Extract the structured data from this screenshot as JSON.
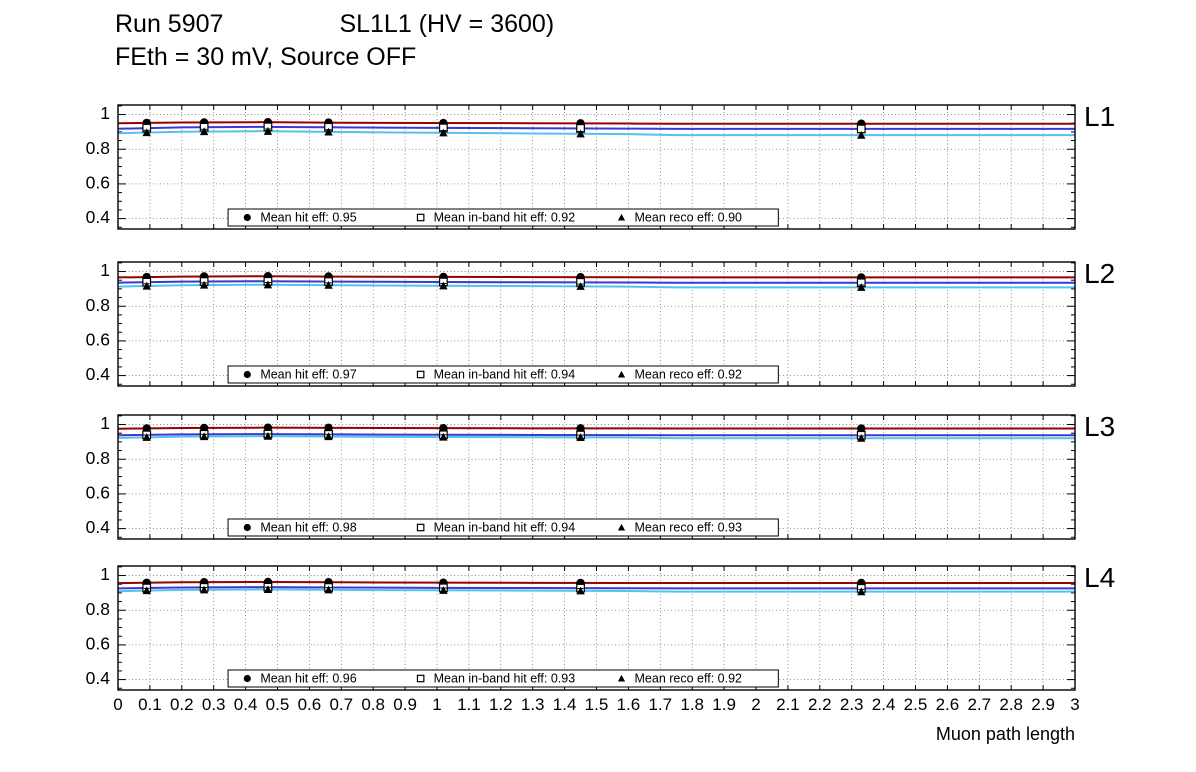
{
  "header": {
    "run_label": "Run 5907",
    "chamber_label": "SL1L1 (HV = 3600)",
    "subtitle": "FEth = 30 mV, Source OFF"
  },
  "axes": {
    "xlabel": "Muon path length",
    "xlim": [
      0,
      3
    ],
    "x_tick_step": 0.1,
    "x_tick_labels": [
      "0",
      "0.1",
      "0.2",
      "0.3",
      "0.4",
      "0.5",
      "0.6",
      "0.7",
      "0.8",
      "0.9",
      "1",
      "1.1",
      "1.2",
      "1.3",
      "1.4",
      "1.5",
      "1.6",
      "1.7",
      "1.8",
      "1.9",
      "2",
      "2.1",
      "2.2",
      "2.3",
      "2.4",
      "2.5",
      "2.6",
      "2.7",
      "2.8",
      "2.9",
      "3"
    ],
    "ylim": [
      0.34,
      1.055
    ],
    "y_ticks": [
      0.4,
      0.6,
      0.8,
      1
    ],
    "y_tick_labels": [
      "0.4",
      "0.6",
      "0.8",
      "1"
    ],
    "grid": true
  },
  "colors": {
    "hit": "#990000",
    "inband": "#3a3ad1",
    "reco": "#56c1ec",
    "marker": "#000000"
  },
  "chart_data": [
    {
      "type": "line",
      "panel_label": "L1",
      "marker_x": [
        0.09,
        0.27,
        0.47,
        0.66,
        1.02,
        1.45,
        2.33
      ],
      "series": [
        {
          "name": "hit efficiency",
          "marker": "filled-circle",
          "color_key": "hit",
          "x": [
            0,
            0.2,
            0.45,
            0.7,
            1.0,
            1.3,
            1.6,
            1.75,
            3
          ],
          "y": [
            0.95,
            0.954,
            0.956,
            0.953,
            0.951,
            0.95,
            0.948,
            0.947,
            0.947
          ]
        },
        {
          "name": "in-band hit efficiency",
          "marker": "open-square",
          "color_key": "inband",
          "x": [
            0,
            0.2,
            0.45,
            0.7,
            1.0,
            1.3,
            1.6,
            1.75,
            3
          ],
          "y": [
            0.918,
            0.926,
            0.929,
            0.926,
            0.923,
            0.921,
            0.919,
            0.917,
            0.917
          ]
        },
        {
          "name": "reco efficiency",
          "marker": "filled-triangle",
          "color_key": "reco",
          "x": [
            0,
            0.2,
            0.45,
            0.7,
            1.0,
            1.3,
            1.6,
            1.75,
            3
          ],
          "y": [
            0.892,
            0.901,
            0.904,
            0.899,
            0.895,
            0.891,
            0.887,
            0.881,
            0.881
          ]
        }
      ],
      "legend": [
        {
          "marker": "filled-circle",
          "label": "Mean hit  eff: 0.95",
          "value": 0.95
        },
        {
          "marker": "open-square",
          "label": "Mean in-band hit eff: 0.92",
          "value": 0.92
        },
        {
          "marker": "filled-triangle",
          "label": "Mean reco eff: 0.90",
          "value": 0.9
        }
      ]
    },
    {
      "type": "line",
      "panel_label": "L2",
      "marker_x": [
        0.09,
        0.27,
        0.47,
        0.66,
        1.02,
        1.45,
        2.33
      ],
      "series": [
        {
          "name": "hit efficiency",
          "marker": "filled-circle",
          "color_key": "hit",
          "x": [
            0,
            0.2,
            0.45,
            0.7,
            1.0,
            1.3,
            1.6,
            1.75,
            3
          ],
          "y": [
            0.966,
            0.971,
            0.973,
            0.971,
            0.969,
            0.968,
            0.967,
            0.966,
            0.966
          ]
        },
        {
          "name": "in-band hit efficiency",
          "marker": "open-square",
          "color_key": "inband",
          "x": [
            0,
            0.2,
            0.45,
            0.7,
            1.0,
            1.3,
            1.6,
            1.75,
            3
          ],
          "y": [
            0.936,
            0.942,
            0.944,
            0.942,
            0.94,
            0.938,
            0.937,
            0.935,
            0.935
          ]
        },
        {
          "name": "reco efficiency",
          "marker": "filled-triangle",
          "color_key": "reco",
          "x": [
            0,
            0.2,
            0.45,
            0.7,
            1.0,
            1.3,
            1.6,
            1.75,
            3
          ],
          "y": [
            0.913,
            0.921,
            0.924,
            0.921,
            0.918,
            0.916,
            0.913,
            0.909,
            0.909
          ]
        }
      ],
      "legend": [
        {
          "marker": "filled-circle",
          "label": "Mean hit  eff: 0.97",
          "value": 0.97
        },
        {
          "marker": "open-square",
          "label": "Mean in-band hit eff: 0.94",
          "value": 0.94
        },
        {
          "marker": "filled-triangle",
          "label": "Mean reco eff: 0.92",
          "value": 0.92
        }
      ]
    },
    {
      "type": "line",
      "panel_label": "L3",
      "marker_x": [
        0.09,
        0.27,
        0.47,
        0.66,
        1.02,
        1.45,
        2.33
      ],
      "series": [
        {
          "name": "hit efficiency",
          "marker": "filled-circle",
          "color_key": "hit",
          "x": [
            0,
            0.2,
            0.45,
            0.7,
            1.0,
            1.3,
            1.6,
            1.75,
            3
          ],
          "y": [
            0.976,
            0.98,
            0.982,
            0.981,
            0.979,
            0.978,
            0.978,
            0.977,
            0.977
          ]
        },
        {
          "name": "in-band hit efficiency",
          "marker": "open-square",
          "color_key": "inband",
          "x": [
            0,
            0.2,
            0.45,
            0.7,
            1.0,
            1.3,
            1.6,
            1.75,
            3
          ],
          "y": [
            0.938,
            0.943,
            0.945,
            0.943,
            0.941,
            0.94,
            0.939,
            0.938,
            0.938
          ]
        },
        {
          "name": "reco efficiency",
          "marker": "filled-triangle",
          "color_key": "reco",
          "x": [
            0,
            0.2,
            0.45,
            0.7,
            1.0,
            1.3,
            1.6,
            1.75,
            3
          ],
          "y": [
            0.923,
            0.93,
            0.933,
            0.93,
            0.928,
            0.927,
            0.925,
            0.921,
            0.921
          ]
        }
      ],
      "legend": [
        {
          "marker": "filled-circle",
          "label": "Mean hit  eff: 0.98",
          "value": 0.98
        },
        {
          "marker": "open-square",
          "label": "Mean in-band hit eff: 0.94",
          "value": 0.94
        },
        {
          "marker": "filled-triangle",
          "label": "Mean reco eff: 0.93",
          "value": 0.93
        }
      ]
    },
    {
      "type": "line",
      "panel_label": "L4",
      "marker_x": [
        0.09,
        0.27,
        0.47,
        0.66,
        1.02,
        1.45,
        2.33
      ],
      "series": [
        {
          "name": "hit efficiency",
          "marker": "filled-circle",
          "color_key": "hit",
          "x": [
            0,
            0.2,
            0.45,
            0.7,
            1.0,
            1.3,
            1.6,
            1.75,
            3
          ],
          "y": [
            0.956,
            0.961,
            0.963,
            0.961,
            0.959,
            0.958,
            0.957,
            0.957,
            0.957
          ]
        },
        {
          "name": "in-band hit efficiency",
          "marker": "open-square",
          "color_key": "inband",
          "x": [
            0,
            0.2,
            0.45,
            0.7,
            1.0,
            1.3,
            1.6,
            1.75,
            3
          ],
          "y": [
            0.926,
            0.931,
            0.933,
            0.931,
            0.929,
            0.928,
            0.927,
            0.926,
            0.926
          ]
        },
        {
          "name": "reco efficiency",
          "marker": "filled-triangle",
          "color_key": "reco",
          "x": [
            0,
            0.2,
            0.45,
            0.7,
            1.0,
            1.3,
            1.6,
            1.75,
            3
          ],
          "y": [
            0.91,
            0.917,
            0.92,
            0.917,
            0.915,
            0.913,
            0.911,
            0.907,
            0.907
          ]
        }
      ],
      "legend": [
        {
          "marker": "filled-circle",
          "label": "Mean hit  eff: 0.96",
          "value": 0.96
        },
        {
          "marker": "open-square",
          "label": "Mean in-band hit eff: 0.93",
          "value": 0.93
        },
        {
          "marker": "filled-triangle",
          "label": "Mean reco eff: 0.92",
          "value": 0.92
        }
      ]
    }
  ]
}
